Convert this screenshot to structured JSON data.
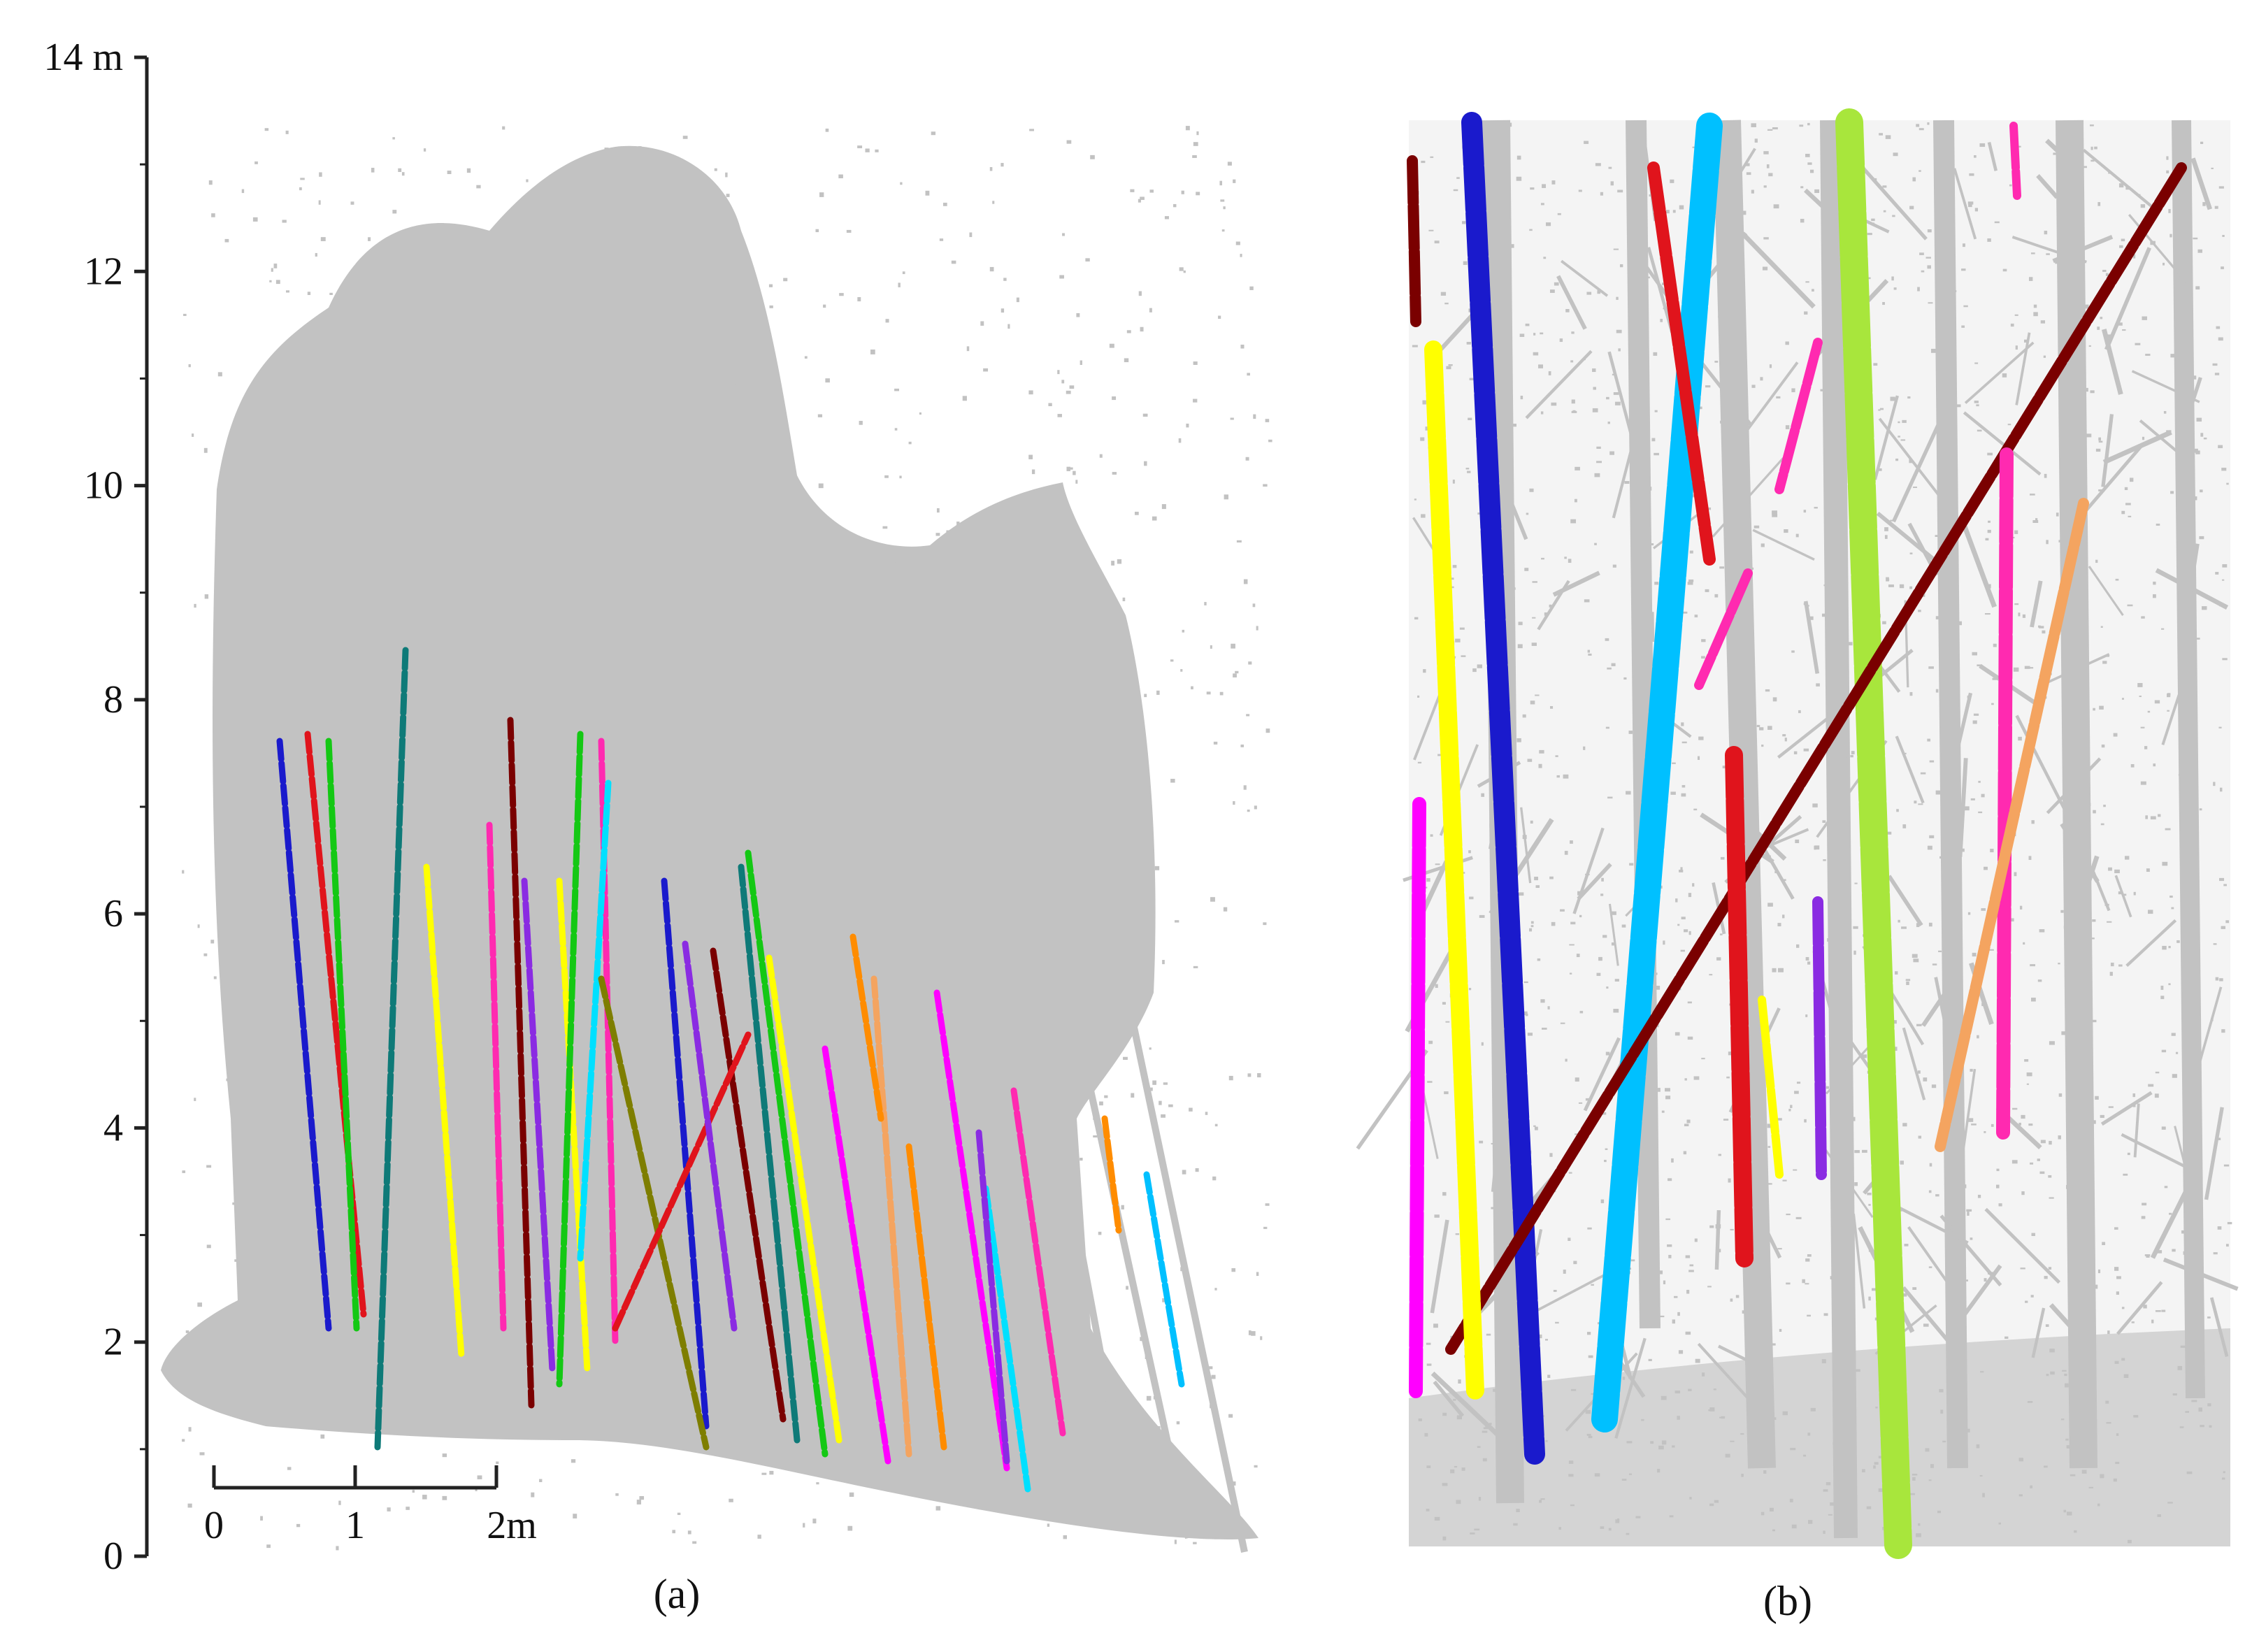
{
  "panel_a": {
    "y_axis": {
      "unit": "m",
      "tick_labels": [
        "0",
        "2",
        "4",
        "6",
        "8",
        "10",
        "12",
        "14 m"
      ]
    },
    "scale_bar": {
      "tick_labels": [
        "0",
        "1",
        "2m"
      ]
    },
    "caption": "(a)"
  },
  "panel_b": {
    "caption": "(b)"
  },
  "colors": {
    "point_cloud_gray": "#c2c2c2",
    "axis": "#222222",
    "stem_palette": [
      "#1a1acc",
      "#e0141c",
      "#14c814",
      "#0e7a78",
      "#ffff00",
      "#ff2ab0",
      "#7a0000",
      "#8a2be2",
      "#f4a460",
      "#00e0ff",
      "#7e7e00",
      "#ff00ff",
      "#ff8c00",
      "#00c0ff",
      "#a8e63c"
    ]
  }
}
